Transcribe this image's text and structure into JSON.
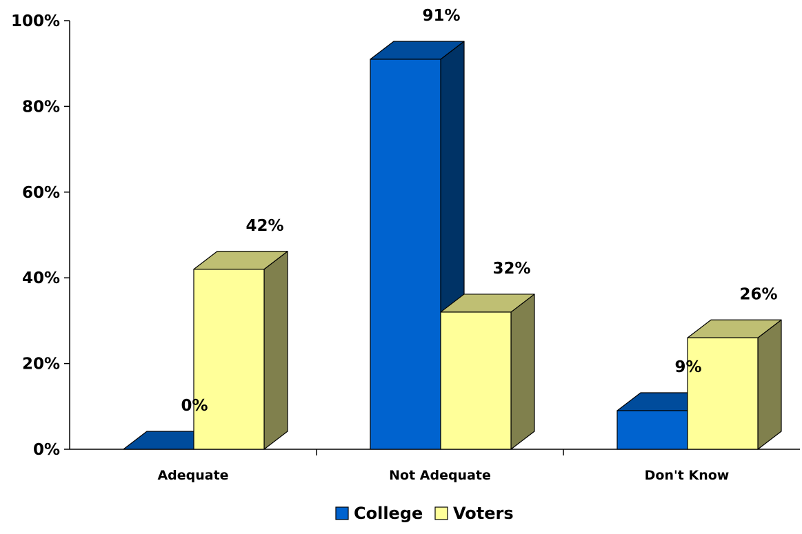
{
  "chart_data": {
    "type": "bar",
    "style": "3d-clustered-column",
    "categories": [
      "Adequate",
      "Not Adequate",
      "Don't Know"
    ],
    "series": [
      {
        "name": "College",
        "values": [
          0,
          91,
          9
        ],
        "labels": [
          "0%",
          "91%",
          "9%"
        ],
        "color": "#0063cf",
        "top_color": "#004c9c",
        "side_color": "#003366"
      },
      {
        "name": "Voters",
        "values": [
          42,
          32,
          26
        ],
        "labels": [
          "42%",
          "32%",
          "26%"
        ],
        "color": "#ffff99",
        "top_color": "#bfbf73",
        "side_color": "#80804d"
      }
    ],
    "ylim": [
      0,
      100
    ],
    "yticks": [
      0,
      20,
      40,
      60,
      80,
      100
    ],
    "ytick_labels": [
      "0%",
      "20%",
      "40%",
      "60%",
      "80%",
      "100%"
    ],
    "grid": false,
    "legend_position": "bottom"
  }
}
